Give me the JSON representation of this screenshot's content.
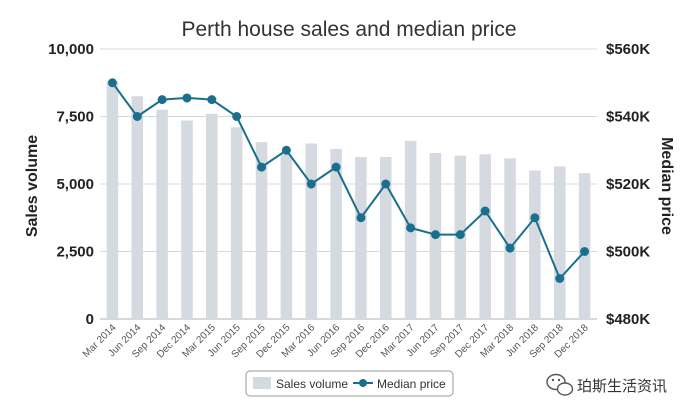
{
  "chart_data": {
    "type": "bar+line",
    "title": "Perth house sales and median price",
    "categories": [
      "Mar 2014",
      "Jun 2014",
      "Sep 2014",
      "Dec 2014",
      "Mar 2015",
      "Jun 2015",
      "Sep 2015",
      "Dec 2015",
      "Mar 2016",
      "Jun 2016",
      "Sep 2016",
      "Dec 2016",
      "Mar 2017",
      "Jun 2017",
      "Sep 2017",
      "Dec 2017",
      "Mar 2018",
      "Jun 2018",
      "Sep 2018",
      "Dec 2018"
    ],
    "series": [
      {
        "name": "Sales volume",
        "type": "bar",
        "axis": "left",
        "color": "#d5d9e0",
        "values": [
          8800,
          8250,
          7750,
          7350,
          7600,
          7100,
          6550,
          6100,
          6500,
          6300,
          6000,
          6000,
          6600,
          6150,
          6050,
          6100,
          5950,
          5500,
          5650,
          5400
        ]
      },
      {
        "name": "Median price",
        "type": "line",
        "axis": "right",
        "color": "#1b6f8e",
        "values": [
          550,
          540,
          545,
          545.5,
          545,
          540,
          525,
          530,
          520,
          525,
          510,
          520,
          507,
          505,
          505,
          512,
          501,
          510,
          492,
          500
        ]
      }
    ],
    "left_axis": {
      "title": "Sales volume",
      "min": 0,
      "max": 10000,
      "ticks": [
        0,
        2500,
        5000,
        7500,
        10000
      ],
      "tick_labels": [
        "0",
        "2,500",
        "5,000",
        "7,500",
        "10,000"
      ]
    },
    "right_axis": {
      "title": "Median price",
      "min": 480,
      "max": 560,
      "ticks": [
        480,
        500,
        520,
        540,
        560
      ],
      "tick_labels": [
        "$480K",
        "$500K",
        "$520K",
        "$540K",
        "$560K"
      ]
    },
    "grid": true,
    "legend_position": "bottom-center",
    "legend": [
      {
        "label": "Sales volume",
        "swatch": "bar"
      },
      {
        "label": "Median price",
        "swatch": "line"
      }
    ]
  },
  "watermark": {
    "text": "珀斯生活资讯",
    "icon": "wechat-icon"
  }
}
